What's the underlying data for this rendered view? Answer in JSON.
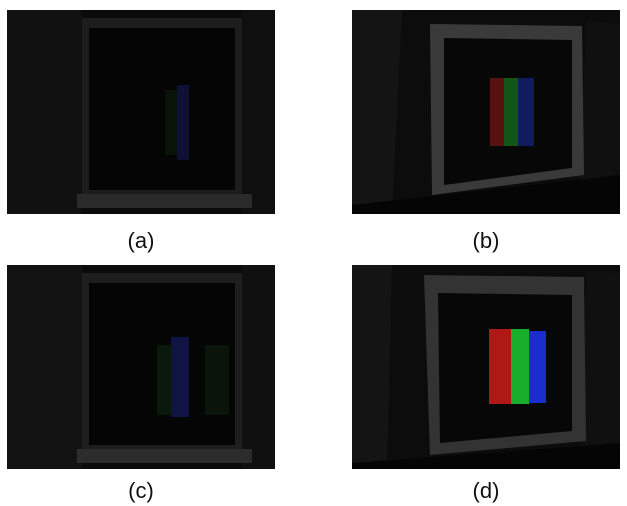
{
  "panels": [
    {
      "id": "a",
      "caption": "(a)"
    },
    {
      "id": "b",
      "caption": "(b)"
    },
    {
      "id": "c",
      "caption": "(c)"
    },
    {
      "id": "d",
      "caption": "(d)"
    }
  ],
  "colors": {
    "background": "#ffffff",
    "scene_dark": "#0a0a0a",
    "frame_gray": "#2e2e2e",
    "stripe_red": "#c01818",
    "stripe_green": "#18b828",
    "stripe_blue": "#1830d8"
  }
}
